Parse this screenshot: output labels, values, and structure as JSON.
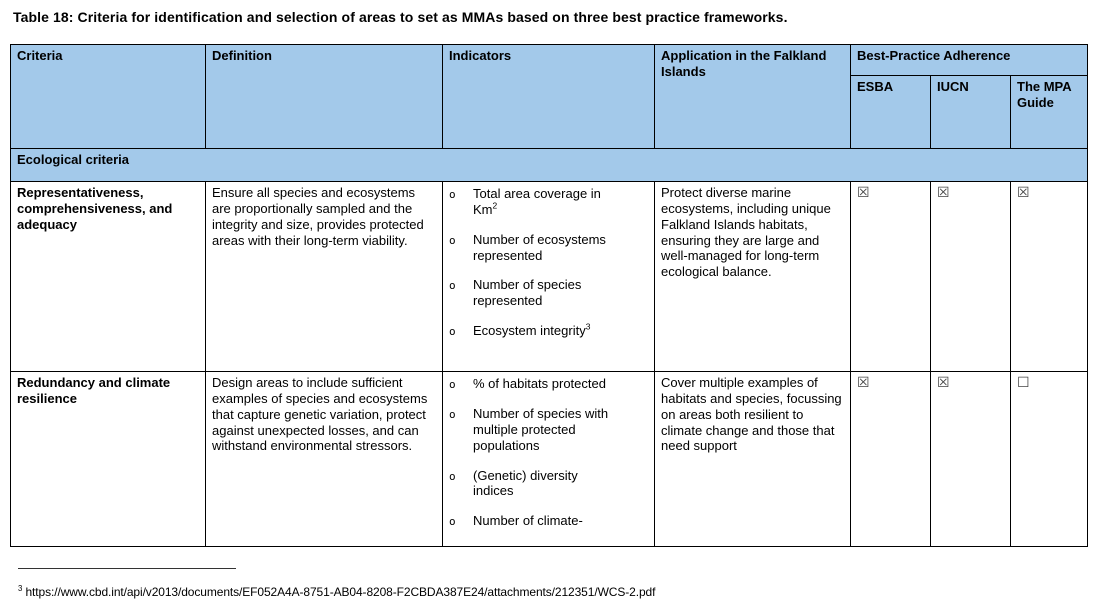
{
  "title": "Table 18: Criteria for identification and selection of areas to set as MMAs based on three best practice frameworks.",
  "colors": {
    "header_bg": "#A3C9EA",
    "border": "#000000",
    "text": "#000000"
  },
  "checkbox": {
    "checked": "☒",
    "unchecked": "☐"
  },
  "table": {
    "bullet": "o",
    "headers": {
      "criteria": "Criteria",
      "definition": "Definition",
      "indicators": "Indicators",
      "application": "Application in the Falkland Islands",
      "adherence": "Best-Practice Adherence",
      "sub": [
        "ESBA",
        "IUCN",
        "The MPA Guide"
      ]
    },
    "section": "Ecological criteria",
    "rows": [
      {
        "criteria": "Representativeness, comprehensiveness, and adequacy",
        "definition": "Ensure all species and ecosystems are proportionally sampled and the integrity and size, provides protected areas with their long-term viability.",
        "indicators": [
          {
            "text": "Total area coverage in Km",
            "sup": "2"
          },
          {
            "text": "Number of ecosystems represented"
          },
          {
            "text": "Number of species represented"
          },
          {
            "text": "Ecosystem integrity",
            "sup": "3"
          }
        ],
        "application": "Protect diverse marine ecosystems, including unique Falkland Islands habitats, ensuring they are large and well-managed for long-term ecological balance.",
        "adherence": {
          "esba": true,
          "iucn": true,
          "mpa": true
        }
      },
      {
        "criteria": "Redundancy and climate resilience",
        "definition": "Design areas to include sufficient examples of species and ecosystems that capture genetic variation, protect against unexpected losses, and can withstand environmental stressors.",
        "indicators": [
          {
            "text": "% of habitats protected"
          },
          {
            "text": "Number of species with multiple protected populations"
          },
          {
            "text": "(Genetic) diversity indices"
          },
          {
            "text": "Number of climate-"
          }
        ],
        "application": "Cover multiple examples of habitats and species, focussing on areas both resilient to climate change and those that need support",
        "adherence": {
          "esba": true,
          "iucn": true,
          "mpa": false
        }
      }
    ]
  },
  "footnote": {
    "marker": "3",
    "text": " https://www.cbd.int/api/v2013/documents/EF052A4A-8751-AB04-8208-F2CBDA387E24/attachments/212351/WCS-2.pdf"
  }
}
